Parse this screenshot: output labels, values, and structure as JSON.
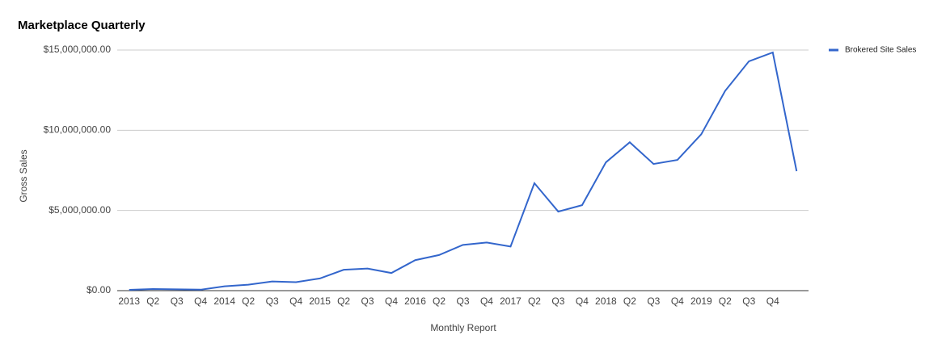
{
  "chart_data": {
    "type": "line",
    "title": "Marketplace Quarterly",
    "x_label": "Monthly Report",
    "y_label": "Gross Sales",
    "categories": [
      "2013",
      "Q2",
      "Q3",
      "Q4",
      "2014",
      "Q2",
      "Q3",
      "Q4",
      "2015",
      "Q2",
      "Q3",
      "Q4",
      "2016",
      "Q2",
      "Q3",
      "Q4",
      "2017",
      "Q2",
      "Q3",
      "Q4",
      "2018",
      "Q2",
      "Q3",
      "Q4",
      "2019",
      "Q2",
      "Q3",
      "Q4",
      null
    ],
    "series": [
      {
        "name": "Brokered Site Sales",
        "color": "#3366cc",
        "values": [
          50000,
          100000,
          80000,
          60000,
          270000,
          370000,
          570000,
          530000,
          760000,
          1300000,
          1380000,
          1100000,
          1900000,
          2220000,
          2850000,
          3000000,
          2750000,
          6700000,
          4930000,
          5330000,
          8000000,
          9250000,
          7900000,
          8150000,
          9750000,
          12450000,
          14300000,
          14850000,
          7450000
        ]
      }
    ],
    "ylim": [
      0,
      15000000
    ],
    "yticks": [
      {
        "value": 0,
        "label": "$0.00"
      },
      {
        "value": 5000000,
        "label": "$5,000,000.00"
      },
      {
        "value": 10000000,
        "label": "$10,000,000.00"
      },
      {
        "value": 15000000,
        "label": "$15,000,000.00"
      }
    ],
    "grid": true,
    "legend": "right"
  }
}
